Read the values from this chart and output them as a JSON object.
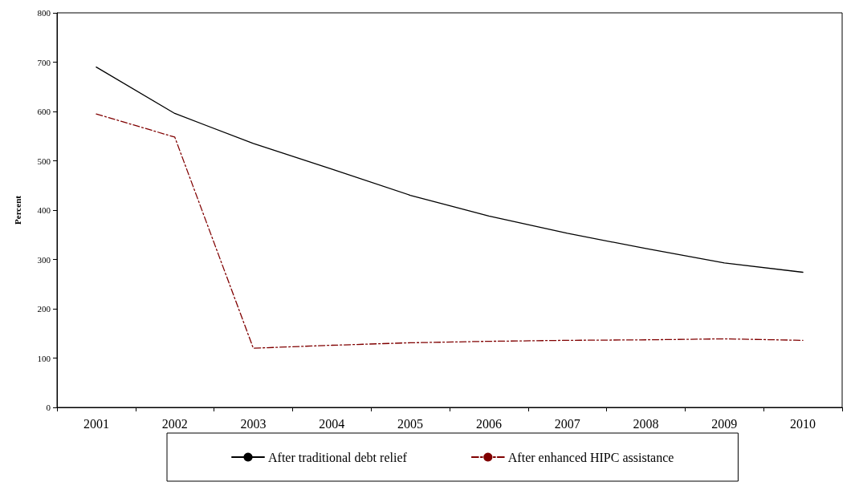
{
  "chart_data": {
    "type": "line",
    "ylabel": "Percent",
    "categories": [
      "2001",
      "2002",
      "2003",
      "2004",
      "2005",
      "2006",
      "2007",
      "2008",
      "2009",
      "2010"
    ],
    "series": [
      {
        "name": "After traditional debt relief",
        "color": "#000000",
        "line_style": "solid",
        "values": [
          690,
          596,
          535,
          483,
          430,
          388,
          353,
          322,
          293,
          274
        ]
      },
      {
        "name": "After enhanced HIPC assistance",
        "color": "#800000",
        "line_style": "dashdot",
        "values": [
          595,
          548,
          120,
          126,
          131,
          134,
          136,
          137,
          139,
          136
        ]
      }
    ],
    "ylim": [
      0,
      800
    ],
    "yticks": [
      0,
      100,
      200,
      300,
      400,
      500,
      600,
      700,
      800
    ],
    "grid": false,
    "legend": "bottom",
    "marker": "none"
  }
}
